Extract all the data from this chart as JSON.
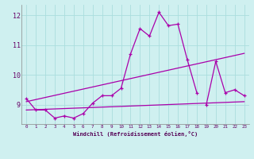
{
  "xlabel": "Windchill (Refroidissement éolien,°C)",
  "background_color": "#cff0f0",
  "grid_color": "#aadddd",
  "line_color": "#aa00aa",
  "x_values": [
    0,
    1,
    2,
    3,
    4,
    5,
    6,
    7,
    8,
    9,
    10,
    11,
    12,
    13,
    14,
    15,
    16,
    17,
    18,
    19,
    20,
    21,
    22,
    23
  ],
  "line1_x": [
    0,
    1,
    2,
    3,
    4,
    5,
    6,
    7,
    8,
    9,
    10,
    11,
    12,
    13,
    14,
    15,
    16,
    17,
    18
  ],
  "line1_y": [
    9.2,
    8.82,
    8.82,
    8.55,
    8.62,
    8.55,
    8.7,
    9.05,
    9.3,
    9.3,
    9.55,
    10.7,
    11.55,
    11.3,
    12.1,
    11.65,
    11.7,
    10.5,
    9.4
  ],
  "line2_x": [
    19,
    20,
    21,
    22,
    23
  ],
  "line2_y": [
    9.0,
    10.45,
    9.4,
    9.5,
    9.3
  ],
  "line3_x": [
    0,
    23
  ],
  "line3_y": [
    9.1,
    10.72
  ],
  "line4_x": [
    0,
    23
  ],
  "line4_y": [
    8.82,
    9.1
  ],
  "ylim": [
    8.35,
    12.35
  ],
  "xlim": [
    -0.5,
    23.5
  ],
  "yticks": [
    9,
    10,
    11,
    12
  ],
  "xticks": [
    0,
    1,
    2,
    3,
    4,
    5,
    6,
    7,
    8,
    9,
    10,
    11,
    12,
    13,
    14,
    15,
    16,
    17,
    18,
    19,
    20,
    21,
    22,
    23
  ]
}
